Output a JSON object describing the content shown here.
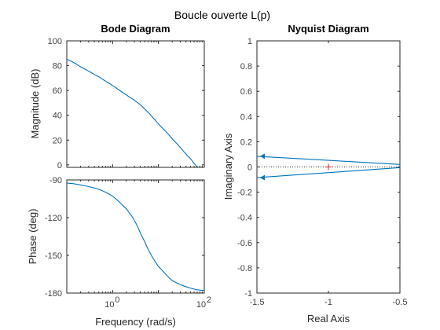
{
  "figure": {
    "title": "Boucle ouverte L(p)"
  },
  "colors": {
    "curve": "#0072bd",
    "critical_point": "#d62728",
    "axes": "#262626",
    "background": "#ffffff"
  },
  "chart_data": [
    {
      "type": "line",
      "panel": "bode-magnitude",
      "title": "Bode Diagram",
      "xlabel": "",
      "ylabel": "Magnitude (dB)",
      "x_scale": "log",
      "xlim": [
        0.1,
        100
      ],
      "ylim": [
        -2,
        100
      ],
      "yticks": [
        0,
        20,
        40,
        60,
        80,
        100
      ],
      "xticks": [],
      "grid": false,
      "series": [
        {
          "x": [
            0.1,
            0.2,
            0.5,
            1,
            2,
            3,
            5,
            10,
            20,
            50,
            100
          ],
          "y": [
            85,
            79,
            71,
            64,
            56.5,
            52,
            45,
            33,
            21,
            5,
            -7
          ]
        }
      ]
    },
    {
      "type": "line",
      "panel": "bode-phase",
      "title": "",
      "xlabel": "Frequency  (rad/s)",
      "ylabel": "Phase (deg)",
      "x_scale": "log",
      "xlim": [
        0.1,
        100
      ],
      "ylim": [
        -180,
        -90
      ],
      "yticks": [
        -180,
        -150,
        -120,
        -90
      ],
      "xticks": [
        1,
        100
      ],
      "xtick_labels": [
        {
          "base": "10",
          "exp": "0"
        },
        {
          "base": "10",
          "exp": "2"
        }
      ],
      "grid": false,
      "series": [
        {
          "x": [
            0.1,
            0.2,
            0.5,
            1,
            2,
            3,
            5,
            7,
            10,
            20,
            50,
            100
          ],
          "y": [
            -92.5,
            -94,
            -97.5,
            -103,
            -113,
            -122.5,
            -139,
            -150,
            -159,
            -170,
            -176,
            -178
          ]
        }
      ]
    },
    {
      "type": "line",
      "panel": "nyquist",
      "title": "Nyquist Diagram",
      "xlabel": "Real Axis",
      "ylabel": "Imaginary Axis",
      "xlim": [
        -1.5,
        -0.5
      ],
      "ylim": [
        -1,
        1
      ],
      "xticks": [
        -1.5,
        -1,
        -0.5
      ],
      "yticks": [
        -1,
        -0.8,
        -0.6,
        -0.4,
        -0.2,
        0,
        0.2,
        0.4,
        0.6,
        0.8,
        1
      ],
      "grid": false,
      "critical_point": {
        "x": -1,
        "y": 0
      },
      "series": [
        {
          "name": "",
          "x": [
            -0.5,
            -1.5
          ],
          "y": [
            0.02,
            0.085
          ]
        },
        {
          "name": "",
          "x": [
            -0.5,
            -1.5
          ],
          "y": [
            -0.005,
            -0.085
          ]
        }
      ],
      "zero_line": "dotted"
    }
  ]
}
